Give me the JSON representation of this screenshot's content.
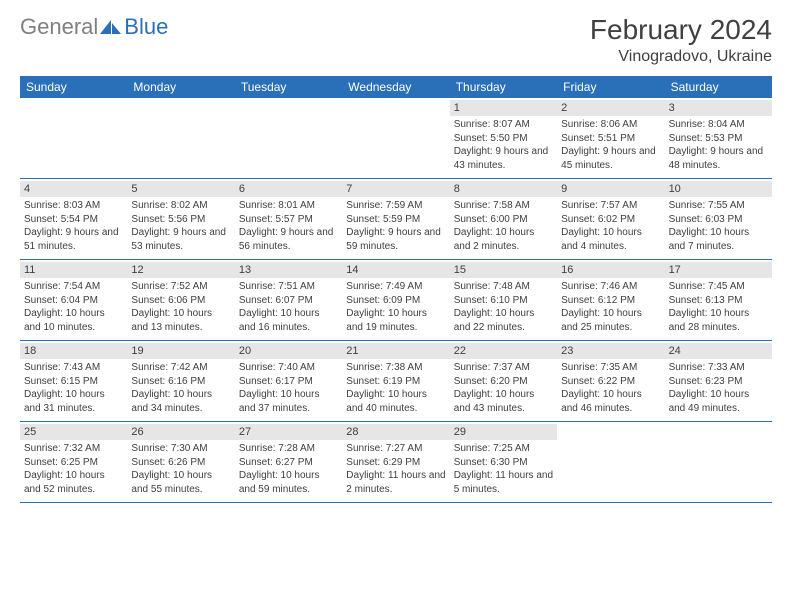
{
  "logo": {
    "text_left": "General",
    "text_right": "Blue"
  },
  "header": {
    "month_title": "February 2024",
    "location": "Vinogradovo, Ukraine"
  },
  "colors": {
    "header_bg": "#2a70b8",
    "header_text": "#ffffff",
    "daynum_bg": "#e6e6e6",
    "border": "#2a70b8",
    "text": "#404040",
    "logo_gray": "#808080",
    "logo_blue": "#2a70b8"
  },
  "weekdays": [
    "Sunday",
    "Monday",
    "Tuesday",
    "Wednesday",
    "Thursday",
    "Friday",
    "Saturday"
  ],
  "weeks": [
    [
      {
        "day": "",
        "sunrise": "",
        "sunset": "",
        "daylight": ""
      },
      {
        "day": "",
        "sunrise": "",
        "sunset": "",
        "daylight": ""
      },
      {
        "day": "",
        "sunrise": "",
        "sunset": "",
        "daylight": ""
      },
      {
        "day": "",
        "sunrise": "",
        "sunset": "",
        "daylight": ""
      },
      {
        "day": "1",
        "sunrise": "Sunrise: 8:07 AM",
        "sunset": "Sunset: 5:50 PM",
        "daylight": "Daylight: 9 hours and 43 minutes."
      },
      {
        "day": "2",
        "sunrise": "Sunrise: 8:06 AM",
        "sunset": "Sunset: 5:51 PM",
        "daylight": "Daylight: 9 hours and 45 minutes."
      },
      {
        "day": "3",
        "sunrise": "Sunrise: 8:04 AM",
        "sunset": "Sunset: 5:53 PM",
        "daylight": "Daylight: 9 hours and 48 minutes."
      }
    ],
    [
      {
        "day": "4",
        "sunrise": "Sunrise: 8:03 AM",
        "sunset": "Sunset: 5:54 PM",
        "daylight": "Daylight: 9 hours and 51 minutes."
      },
      {
        "day": "5",
        "sunrise": "Sunrise: 8:02 AM",
        "sunset": "Sunset: 5:56 PM",
        "daylight": "Daylight: 9 hours and 53 minutes."
      },
      {
        "day": "6",
        "sunrise": "Sunrise: 8:01 AM",
        "sunset": "Sunset: 5:57 PM",
        "daylight": "Daylight: 9 hours and 56 minutes."
      },
      {
        "day": "7",
        "sunrise": "Sunrise: 7:59 AM",
        "sunset": "Sunset: 5:59 PM",
        "daylight": "Daylight: 9 hours and 59 minutes."
      },
      {
        "day": "8",
        "sunrise": "Sunrise: 7:58 AM",
        "sunset": "Sunset: 6:00 PM",
        "daylight": "Daylight: 10 hours and 2 minutes."
      },
      {
        "day": "9",
        "sunrise": "Sunrise: 7:57 AM",
        "sunset": "Sunset: 6:02 PM",
        "daylight": "Daylight: 10 hours and 4 minutes."
      },
      {
        "day": "10",
        "sunrise": "Sunrise: 7:55 AM",
        "sunset": "Sunset: 6:03 PM",
        "daylight": "Daylight: 10 hours and 7 minutes."
      }
    ],
    [
      {
        "day": "11",
        "sunrise": "Sunrise: 7:54 AM",
        "sunset": "Sunset: 6:04 PM",
        "daylight": "Daylight: 10 hours and 10 minutes."
      },
      {
        "day": "12",
        "sunrise": "Sunrise: 7:52 AM",
        "sunset": "Sunset: 6:06 PM",
        "daylight": "Daylight: 10 hours and 13 minutes."
      },
      {
        "day": "13",
        "sunrise": "Sunrise: 7:51 AM",
        "sunset": "Sunset: 6:07 PM",
        "daylight": "Daylight: 10 hours and 16 minutes."
      },
      {
        "day": "14",
        "sunrise": "Sunrise: 7:49 AM",
        "sunset": "Sunset: 6:09 PM",
        "daylight": "Daylight: 10 hours and 19 minutes."
      },
      {
        "day": "15",
        "sunrise": "Sunrise: 7:48 AM",
        "sunset": "Sunset: 6:10 PM",
        "daylight": "Daylight: 10 hours and 22 minutes."
      },
      {
        "day": "16",
        "sunrise": "Sunrise: 7:46 AM",
        "sunset": "Sunset: 6:12 PM",
        "daylight": "Daylight: 10 hours and 25 minutes."
      },
      {
        "day": "17",
        "sunrise": "Sunrise: 7:45 AM",
        "sunset": "Sunset: 6:13 PM",
        "daylight": "Daylight: 10 hours and 28 minutes."
      }
    ],
    [
      {
        "day": "18",
        "sunrise": "Sunrise: 7:43 AM",
        "sunset": "Sunset: 6:15 PM",
        "daylight": "Daylight: 10 hours and 31 minutes."
      },
      {
        "day": "19",
        "sunrise": "Sunrise: 7:42 AM",
        "sunset": "Sunset: 6:16 PM",
        "daylight": "Daylight: 10 hours and 34 minutes."
      },
      {
        "day": "20",
        "sunrise": "Sunrise: 7:40 AM",
        "sunset": "Sunset: 6:17 PM",
        "daylight": "Daylight: 10 hours and 37 minutes."
      },
      {
        "day": "21",
        "sunrise": "Sunrise: 7:38 AM",
        "sunset": "Sunset: 6:19 PM",
        "daylight": "Daylight: 10 hours and 40 minutes."
      },
      {
        "day": "22",
        "sunrise": "Sunrise: 7:37 AM",
        "sunset": "Sunset: 6:20 PM",
        "daylight": "Daylight: 10 hours and 43 minutes."
      },
      {
        "day": "23",
        "sunrise": "Sunrise: 7:35 AM",
        "sunset": "Sunset: 6:22 PM",
        "daylight": "Daylight: 10 hours and 46 minutes."
      },
      {
        "day": "24",
        "sunrise": "Sunrise: 7:33 AM",
        "sunset": "Sunset: 6:23 PM",
        "daylight": "Daylight: 10 hours and 49 minutes."
      }
    ],
    [
      {
        "day": "25",
        "sunrise": "Sunrise: 7:32 AM",
        "sunset": "Sunset: 6:25 PM",
        "daylight": "Daylight: 10 hours and 52 minutes."
      },
      {
        "day": "26",
        "sunrise": "Sunrise: 7:30 AM",
        "sunset": "Sunset: 6:26 PM",
        "daylight": "Daylight: 10 hours and 55 minutes."
      },
      {
        "day": "27",
        "sunrise": "Sunrise: 7:28 AM",
        "sunset": "Sunset: 6:27 PM",
        "daylight": "Daylight: 10 hours and 59 minutes."
      },
      {
        "day": "28",
        "sunrise": "Sunrise: 7:27 AM",
        "sunset": "Sunset: 6:29 PM",
        "daylight": "Daylight: 11 hours and 2 minutes."
      },
      {
        "day": "29",
        "sunrise": "Sunrise: 7:25 AM",
        "sunset": "Sunset: 6:30 PM",
        "daylight": "Daylight: 11 hours and 5 minutes."
      },
      {
        "day": "",
        "sunrise": "",
        "sunset": "",
        "daylight": ""
      },
      {
        "day": "",
        "sunrise": "",
        "sunset": "",
        "daylight": ""
      }
    ]
  ]
}
